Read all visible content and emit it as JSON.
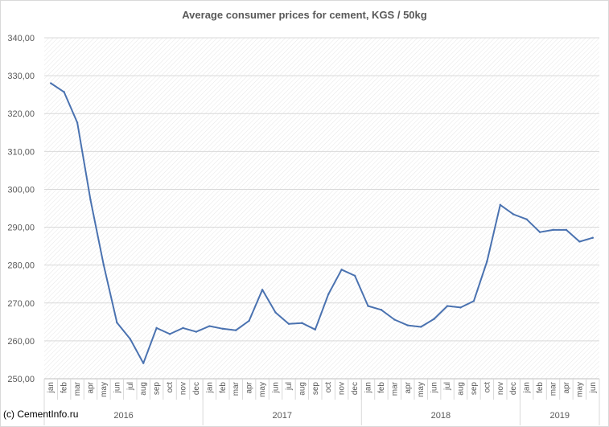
{
  "chart_data": {
    "type": "line",
    "title": "Average consumer prices for cement, KGS / 50kg",
    "xlabel": "",
    "ylabel": "",
    "ylim": [
      250,
      340
    ],
    "yticks": [
      "250,00",
      "260,00",
      "270,00",
      "280,00",
      "290,00",
      "300,00",
      "310,00",
      "320,00",
      "330,00",
      "340,00"
    ],
    "grid": true,
    "legend": "none",
    "groups": [
      {
        "year": "2016",
        "months": [
          "jan",
          "feb",
          "mar",
          "apr",
          "may",
          "jun",
          "jul",
          "aug",
          "sep",
          "oct",
          "nov",
          "dec"
        ]
      },
      {
        "year": "2017",
        "months": [
          "jan",
          "feb",
          "mar",
          "apr",
          "may",
          "jun",
          "jul",
          "aug",
          "sep",
          "oct",
          "nov",
          "dec"
        ]
      },
      {
        "year": "2018",
        "months": [
          "jan",
          "feb",
          "mar",
          "apr",
          "may",
          "jun",
          "jul",
          "aug",
          "sep",
          "oct",
          "nov",
          "dec"
        ]
      },
      {
        "year": "2019",
        "months": [
          "jan",
          "feb",
          "mar",
          "apr",
          "may",
          "jun"
        ]
      }
    ],
    "series": [
      {
        "color": "#4a72b0",
        "values": [
          328.0,
          325.7,
          317.6,
          297.2,
          280.0,
          264.8,
          260.5,
          254.1,
          263.4,
          261.8,
          263.4,
          262.4,
          263.9,
          263.2,
          262.8,
          265.3,
          273.5,
          267.5,
          264.5,
          264.7,
          263.0,
          272.3,
          278.8,
          277.2,
          269.2,
          268.2,
          265.6,
          264.1,
          263.7,
          265.8,
          269.2,
          268.8,
          270.5,
          281.0,
          295.9,
          293.4,
          292.1,
          288.7,
          289.3,
          289.3,
          286.2,
          287.2
        ]
      }
    ]
  },
  "footer": {
    "copyright": "(c) CementInfo.ru"
  }
}
